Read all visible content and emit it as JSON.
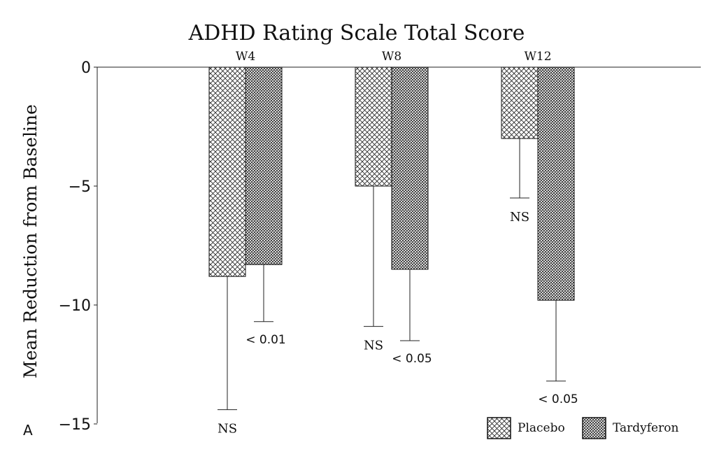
{
  "chart_data": {
    "type": "bar",
    "title": "ADHD Rating Scale Total Score",
    "panel_label": "A",
    "xlabel": "",
    "ylabel": "Mean Reduction from Baseline",
    "ylim": [
      -15,
      0
    ],
    "yticks": [
      {
        "value": 0,
        "label": "0"
      },
      {
        "value": -5,
        "label": "−5"
      },
      {
        "value": -10,
        "label": "−10"
      },
      {
        "value": -15,
        "label": "−15"
      }
    ],
    "categories": [
      "W4",
      "W8",
      "W12"
    ],
    "series": [
      {
        "name": "Placebo",
        "pattern": "crosshatch-light",
        "values": [
          -8.8,
          -5.0,
          -3.0
        ],
        "error_low": [
          -14.4,
          -10.9,
          -5.5
        ],
        "annotations": [
          "NS",
          "NS",
          "NS"
        ]
      },
      {
        "name": "Tardyferon",
        "pattern": "crosshatch-dense",
        "values": [
          -8.3,
          -8.5,
          -9.8
        ],
        "error_low": [
          -10.7,
          -11.5,
          -13.2
        ],
        "annotations": [
          "< 0.01",
          "< 0.05",
          "< 0.05"
        ]
      }
    ],
    "legend_position": "bottom-right",
    "grid": false
  }
}
